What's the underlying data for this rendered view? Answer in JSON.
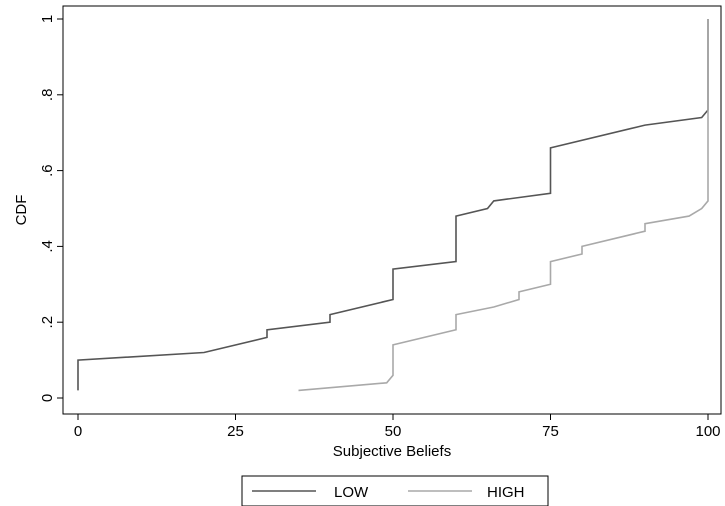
{
  "chart_data": {
    "type": "line",
    "step": true,
    "xlabel": "Subjective Beliefs",
    "ylabel": "CDF",
    "xlim": [
      0,
      100
    ],
    "ylim": [
      0,
      1
    ],
    "xticks": [
      {
        "value": 0,
        "label": "0"
      },
      {
        "value": 25,
        "label": "25"
      },
      {
        "value": 50,
        "label": "50"
      },
      {
        "value": 75,
        "label": "75"
      },
      {
        "value": 100,
        "label": "100"
      }
    ],
    "yticks": [
      {
        "value": 0,
        "label": "0"
      },
      {
        "value": 0.2,
        "label": ".2"
      },
      {
        "value": 0.4,
        "label": ".4"
      },
      {
        "value": 0.6,
        "label": ".6"
      },
      {
        "value": 0.8,
        "label": ".8"
      },
      {
        "value": 1,
        "label": "1"
      }
    ],
    "grid": false,
    "legend_position": "bottom",
    "series": [
      {
        "name": "LOW",
        "color": "#555555",
        "points": [
          [
            0,
            0.02
          ],
          [
            0,
            0.1
          ],
          [
            20,
            0.12
          ],
          [
            30,
            0.16
          ],
          [
            30,
            0.18
          ],
          [
            40,
            0.2
          ],
          [
            40,
            0.22
          ],
          [
            50,
            0.26
          ],
          [
            50,
            0.34
          ],
          [
            60,
            0.36
          ],
          [
            60,
            0.48
          ],
          [
            65,
            0.5
          ],
          [
            66,
            0.52
          ],
          [
            75,
            0.54
          ],
          [
            75,
            0.66
          ],
          [
            90,
            0.72
          ],
          [
            99,
            0.74
          ],
          [
            100,
            0.76
          ],
          [
            100,
            1.0
          ]
        ]
      },
      {
        "name": "HIGH",
        "color": "#a9a9a9",
        "points": [
          [
            35,
            0.02
          ],
          [
            49,
            0.04
          ],
          [
            50,
            0.06
          ],
          [
            50,
            0.14
          ],
          [
            60,
            0.18
          ],
          [
            60,
            0.22
          ],
          [
            66,
            0.24
          ],
          [
            70,
            0.26
          ],
          [
            70,
            0.28
          ],
          [
            75,
            0.3
          ],
          [
            75,
            0.36
          ],
          [
            80,
            0.38
          ],
          [
            80,
            0.4
          ],
          [
            90,
            0.44
          ],
          [
            90,
            0.46
          ],
          [
            97,
            0.48
          ],
          [
            99,
            0.5
          ],
          [
            100,
            0.52
          ],
          [
            100,
            1.0
          ]
        ]
      }
    ]
  }
}
